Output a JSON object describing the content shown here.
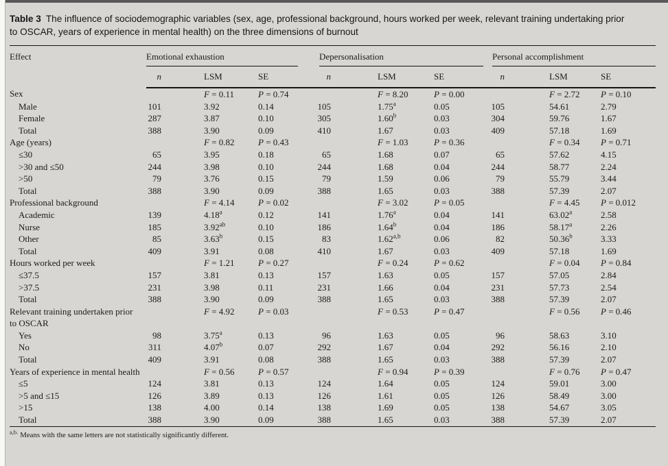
{
  "title": {
    "label": "Table 3",
    "text": "The influence of sociodemographic variables (sex, age, professional background, hours worked per week, relevant training undertaking prior to OSCAR, years of experience in mental health) on the three dimensions of burnout"
  },
  "columns": {
    "effect": "Effect",
    "groups": [
      {
        "label": "Emotional exhaustion",
        "sub": [
          "n",
          "LSM",
          "SE"
        ]
      },
      {
        "label": "Depersonalisation",
        "sub": [
          "n",
          "LSM",
          "SE"
        ]
      },
      {
        "label": "Personal accomplishment",
        "sub": [
          "n",
          "LSM",
          "SE"
        ]
      }
    ]
  },
  "sections": [
    {
      "label": "Sex",
      "stats": [
        {
          "f": "F = 0.11",
          "p": "P = 0.74"
        },
        {
          "f": "F = 8.20",
          "p": "P = 0.00"
        },
        {
          "f": "F = 2.72",
          "p": "P = 0.10"
        }
      ],
      "rows": [
        {
          "label": "Male",
          "cells": [
            "101",
            "3.92",
            "0.14",
            "105",
            "1.75^a",
            "0.05",
            "105",
            "54.61",
            "2.79"
          ]
        },
        {
          "label": "Female",
          "cells": [
            "287",
            "3.87",
            "0.10",
            "305",
            "1.60^b",
            "0.03",
            "304",
            "59.76",
            "1.67"
          ]
        },
        {
          "label": "Total",
          "cells": [
            "388",
            "3.90",
            "0.09",
            "410",
            "1.67",
            "0.03",
            "409",
            "57.18",
            "1.69"
          ]
        }
      ]
    },
    {
      "label": "Age (years)",
      "stats": [
        {
          "f": "F = 0.82",
          "p": "P = 0.43"
        },
        {
          "f": "F = 1.03",
          "p": "P = 0.36"
        },
        {
          "f": "F = 0.34",
          "p": "P = 0.71"
        }
      ],
      "rows": [
        {
          "label": "≤30",
          "cells": [
            "65",
            "3.95",
            "0.18",
            "65",
            "1.68",
            "0.07",
            "65",
            "57.62",
            "4.15"
          ]
        },
        {
          "label": ">30 and ≤50",
          "cells": [
            "244",
            "3.98",
            "0.10",
            "244",
            "1.68",
            "0.04",
            "244",
            "58.77",
            "2.24"
          ]
        },
        {
          "label": ">50",
          "cells": [
            "79",
            "3.76",
            "0.15",
            "79",
            "1.59",
            "0.06",
            "79",
            "55.79",
            "3.44"
          ]
        },
        {
          "label": "Total",
          "cells": [
            "388",
            "3.90",
            "0.09",
            "388",
            "1.65",
            "0.03",
            "388",
            "57.39",
            "2.07"
          ]
        }
      ]
    },
    {
      "label": "Professional background",
      "stats": [
        {
          "f": "F = 4.14",
          "p": "P = 0.02"
        },
        {
          "f": "F = 3.02",
          "p": "P = 0.05"
        },
        {
          "f": "F = 4.45",
          "p": "P = 0.012"
        }
      ],
      "rows": [
        {
          "label": "Academic",
          "cells": [
            "139",
            "4.18^a",
            "0.12",
            "141",
            "1.76^a",
            "0.04",
            "141",
            "63.02^a",
            "2.58"
          ]
        },
        {
          "label": "Nurse",
          "cells": [
            "185",
            "3.92^ab",
            "0.10",
            "186",
            "1.64^b",
            "0.04",
            "186",
            "58.17^a",
            "2.26"
          ]
        },
        {
          "label": "Other",
          "cells": [
            "85",
            "3.63^b",
            "0.15",
            "83",
            "1.62^a,b",
            "0.06",
            "82",
            "50.36^b",
            "3.33"
          ]
        },
        {
          "label": "Total",
          "cells": [
            "409",
            "3.91",
            "0.08",
            "410",
            "1.67",
            "0.03",
            "409",
            "57.18",
            "1.69"
          ]
        }
      ]
    },
    {
      "label": "Hours worked per week",
      "stats": [
        {
          "f": "F = 1.21",
          "p": "P = 0.27"
        },
        {
          "f": "F = 0.24",
          "p": "P = 0.62"
        },
        {
          "f": "F = 0.04",
          "p": "P = 0.84"
        }
      ],
      "rows": [
        {
          "label": "≤37.5",
          "cells": [
            "157",
            "3.81",
            "0.13",
            "157",
            "1.63",
            "0.05",
            "157",
            "57.05",
            "2.84"
          ]
        },
        {
          "label": ">37.5",
          "cells": [
            "231",
            "3.98",
            "0.11",
            "231",
            "1.66",
            "0.04",
            "231",
            "57.73",
            "2.54"
          ]
        },
        {
          "label": "Total",
          "cells": [
            "388",
            "3.90",
            "0.09",
            "388",
            "1.65",
            "0.03",
            "388",
            "57.39",
            "2.07"
          ]
        }
      ]
    },
    {
      "label": "Relevant training undertaken prior to OSCAR",
      "stats": [
        {
          "f": "F = 4.92",
          "p": "P = 0.03"
        },
        {
          "f": "F = 0.53",
          "p": "P = 0.47"
        },
        {
          "f": "F = 0.56",
          "p": "P = 0.46"
        }
      ],
      "rows": [
        {
          "label": "Yes",
          "cells": [
            "98",
            "3.75^a",
            "0.13",
            "96",
            "1.63",
            "0.05",
            "96",
            "58.63",
            "3.10"
          ]
        },
        {
          "label": "No",
          "cells": [
            "311",
            "4.07^b",
            "0.07",
            "292",
            "1.67",
            "0.04",
            "292",
            "56.16",
            "2.10"
          ]
        },
        {
          "label": "Total",
          "cells": [
            "409",
            "3.91",
            "0.08",
            "388",
            "1.65",
            "0.03",
            "388",
            "57.39",
            "2.07"
          ]
        }
      ]
    },
    {
      "label": "Years of experience in mental health",
      "stats": [
        {
          "f": "F = 0.56",
          "p": "P = 0.57"
        },
        {
          "f": "F = 0.94",
          "p": "P = 0.39"
        },
        {
          "f": "F = 0.76",
          "p": "P = 0.47"
        }
      ],
      "rows": [
        {
          "label": "≤5",
          "cells": [
            "124",
            "3.81",
            "0.13",
            "124",
            "1.64",
            "0.05",
            "124",
            "59.01",
            "3.00"
          ]
        },
        {
          "label": ">5 and ≤15",
          "cells": [
            "126",
            "3.89",
            "0.13",
            "126",
            "1.61",
            "0.05",
            "126",
            "58.49",
            "3.00"
          ]
        },
        {
          "label": ">15",
          "cells": [
            "138",
            "4.00",
            "0.14",
            "138",
            "1.69",
            "0.05",
            "138",
            "54.67",
            "3.05"
          ]
        },
        {
          "label": "Total",
          "cells": [
            "388",
            "3.90",
            "0.09",
            "388",
            "1.65",
            "0.03",
            "388",
            "57.39",
            "2.07"
          ]
        }
      ]
    }
  ],
  "footnote": {
    "sup": "a,b.",
    "text": "Means with the same letters are not statistically significantly different."
  },
  "colors": {
    "page_background": "#d7d6d2",
    "top_edge": "#59595b",
    "text": "#1b1b1b",
    "rule": "#141414"
  }
}
